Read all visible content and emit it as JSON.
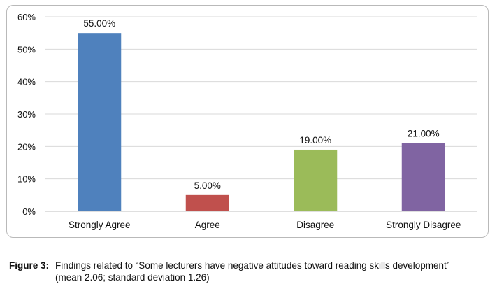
{
  "chart_data": {
    "type": "bar",
    "categories": [
      "Strongly Agree",
      "Agree",
      "Disagree",
      "Strongly Disagree"
    ],
    "values": [
      55,
      5,
      19,
      21
    ],
    "value_labels": [
      "55.00%",
      "5.00%",
      "19.00%",
      "21.00%"
    ],
    "colors": [
      "#4f81bd",
      "#c0504d",
      "#9bbb59",
      "#8064a2"
    ],
    "ylim": [
      0,
      60
    ],
    "yticks": [
      0,
      10,
      20,
      30,
      40,
      50,
      60
    ],
    "ytick_labels": [
      "0%",
      "10%",
      "20%",
      "30%",
      "40%",
      "50%",
      "60%"
    ],
    "grid": true,
    "legend": "none",
    "gridline_color": "#d9d9d9"
  },
  "caption": {
    "label": "Figure 3:",
    "text": "Findings related to “Some lecturers have negative attitudes toward reading skills development” (mean 2.06; standard deviation 1.26)"
  }
}
